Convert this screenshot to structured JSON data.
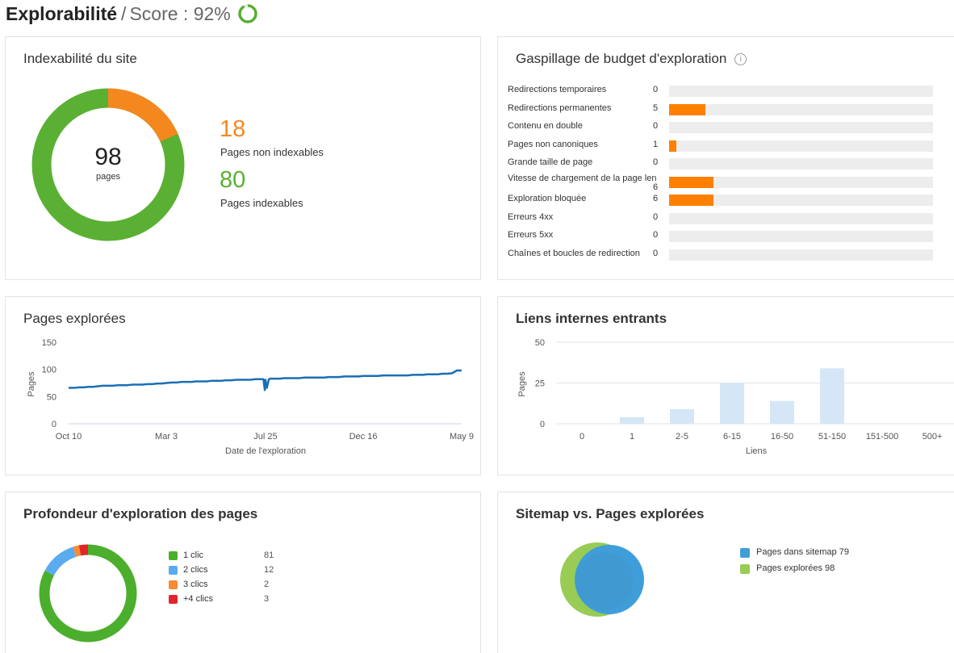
{
  "header": {
    "title": "Explorabilité",
    "separator": "/",
    "score_label": "Score : 92%",
    "score_value": 92,
    "score_color": "#5ab033"
  },
  "indexability": {
    "title": "Indexabilité du site",
    "total": "98",
    "total_label": "pages",
    "non_indexable_count": "18",
    "non_indexable_label": "Pages non indexables",
    "non_indexable_color": "#f5871f",
    "indexable_count": "80",
    "indexable_label": "Pages indexables",
    "indexable_color": "#5ab033"
  },
  "budget": {
    "title": "Gaspillage de budget d'exploration",
    "info_icon": "info-icon",
    "max": 36,
    "bar_color": "#ff8000",
    "rows": [
      {
        "label": "Redirections temporaires",
        "value": "0"
      },
      {
        "label": "Redirections permanentes",
        "value": "5"
      },
      {
        "label": "Contenu en double",
        "value": "0"
      },
      {
        "label": "Pages non canoniques",
        "value": "1"
      },
      {
        "label": "Grande taille de page",
        "value": "0"
      },
      {
        "label": "Vitesse de chargement de la page len",
        "value": "6"
      },
      {
        "label": "Exploration bloquée",
        "value": "6"
      },
      {
        "label": "Erreurs 4xx",
        "value": "0"
      },
      {
        "label": "Erreurs 5xx",
        "value": "0"
      },
      {
        "label": "Chaînes et boucles de redirection",
        "value": "0"
      }
    ]
  },
  "crawled": {
    "title": "Pages explorées",
    "chart_data": {
      "type": "line",
      "ylabel": "Pages",
      "xlabel": "Date de l'exploration",
      "ylim": [
        0,
        150
      ],
      "yticks": [
        "150",
        "100",
        "50",
        "0"
      ],
      "xticks": [
        "Oct 10",
        "Mar 3",
        "Jul 25",
        "Dec 16",
        "May 9"
      ],
      "x_tick_positions": [
        0,
        143,
        288,
        431,
        575
      ],
      "series": [
        {
          "color": "#1a6fb3",
          "x": [
            0,
            7,
            16,
            22,
            29,
            36,
            43,
            50,
            58,
            65,
            72,
            79,
            86,
            94,
            101,
            108,
            115,
            122,
            130,
            137,
            143,
            151,
            158,
            165,
            173,
            180,
            187,
            194,
            202,
            209,
            216,
            223,
            230,
            238,
            245,
            252,
            259,
            266,
            273,
            280,
            285,
            287,
            288,
            290,
            293,
            295,
            302,
            309,
            316,
            324,
            331,
            338,
            345,
            352,
            360,
            367,
            374,
            381,
            388,
            396,
            403,
            410,
            417,
            424,
            431,
            439,
            446,
            453,
            460,
            467,
            475,
            482,
            489,
            496,
            504,
            511,
            518,
            525,
            532,
            540,
            547,
            554,
            561,
            568,
            575
          ],
          "y": [
            66,
            66,
            67,
            67,
            68,
            68,
            69,
            70,
            70,
            70,
            71,
            71,
            71,
            72,
            72,
            72,
            73,
            73,
            74,
            74,
            75,
            76,
            76,
            77,
            77,
            77,
            78,
            78,
            78,
            79,
            79,
            79,
            80,
            80,
            81,
            81,
            81,
            81,
            82,
            82,
            82,
            62,
            81,
            66,
            82,
            83,
            83,
            83,
            84,
            84,
            84,
            84,
            85,
            85,
            85,
            85,
            85,
            86,
            86,
            86,
            87,
            87,
            87,
            87,
            88,
            88,
            88,
            88,
            89,
            89,
            89,
            89,
            89,
            89,
            90,
            90,
            90,
            91,
            91,
            91,
            92,
            92,
            93,
            98,
            98
          ]
        }
      ]
    }
  },
  "links": {
    "title": "Liens internes entrants",
    "chart_data": {
      "type": "bar",
      "ylabel": "Pages",
      "xlabel": "Liens",
      "ylim": [
        0,
        50
      ],
      "yticks": [
        "50",
        "25",
        "0"
      ],
      "categories": [
        "0",
        "1",
        "2-5",
        "6-15",
        "16-50",
        "51-150",
        "151-500",
        "500+"
      ],
      "values": [
        0,
        4,
        9,
        25,
        14,
        34,
        0,
        0
      ],
      "color": "#d5e7f7"
    }
  },
  "depth": {
    "title": "Profondeur d'exploration des pages",
    "chart_data": {
      "type": "pie",
      "total": 98,
      "items": [
        {
          "label": "1 clic",
          "value": "81",
          "color": "#4cae2d"
        },
        {
          "label": "2 clics",
          "value": "12",
          "color": "#5aabf0"
        },
        {
          "label": "3 clics",
          "value": "2",
          "color": "#f58c34"
        },
        {
          "label": "+4 clics",
          "value": "3",
          "color": "#e0262b"
        }
      ]
    }
  },
  "sitemap": {
    "title": "Sitemap vs. Pages explorées",
    "items": [
      {
        "label": "Pages dans sitemap 79",
        "color": "#3f9ed9"
      },
      {
        "label": "Pages explorées 98",
        "color": "#99cc55"
      }
    ]
  }
}
